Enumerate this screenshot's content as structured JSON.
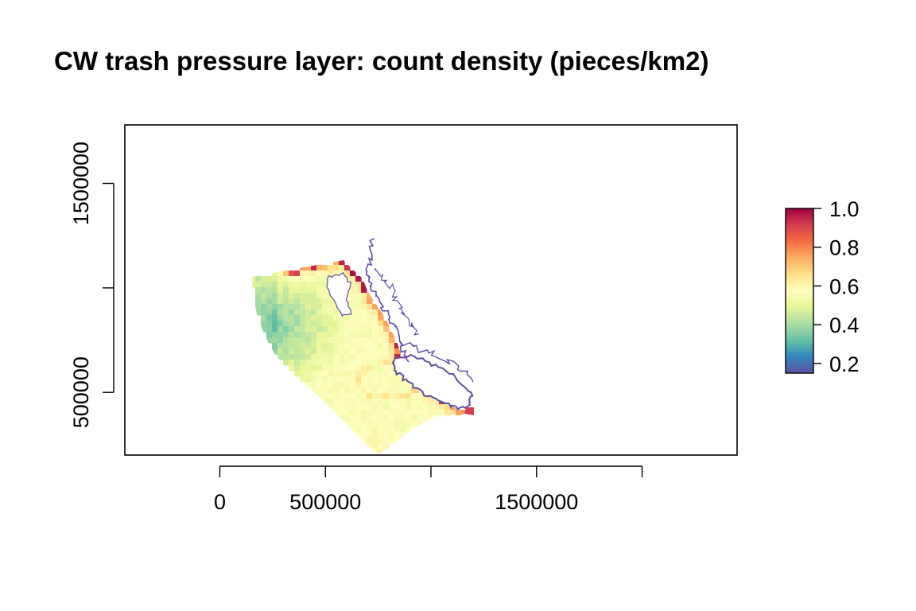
{
  "title": "CW trash pressure layer: count density (pieces/km2)",
  "map": {
    "x_range": [
      -450000,
      2450000
    ],
    "y_range": [
      200000,
      1780000
    ],
    "x_ticks": [
      0,
      500000,
      1000000,
      1500000,
      2000000
    ],
    "x_tick_labels": [
      "0",
      "500000",
      "",
      "1500000",
      ""
    ],
    "y_ticks": [
      500000,
      1000000,
      1500000
    ],
    "y_tick_labels": [
      "500000",
      "",
      "1500000"
    ],
    "coastline_color": "#5E4FA2",
    "raster_extent": {
      "x_range": [
        150000,
        1220000
      ],
      "y_range": [
        215000,
        1230000
      ]
    }
  },
  "legend": {
    "range": [
      0.15,
      1.0
    ],
    "tick_values": [
      0.2,
      0.4,
      0.6,
      0.8,
      1.0
    ],
    "tick_labels": [
      "0.2",
      "0.4",
      "0.6",
      "0.8",
      "1.0"
    ],
    "palette": "Spectral",
    "colors": [
      "#5E4FA2",
      "#3288BD",
      "#66C2A5",
      "#ABDDA4",
      "#E6F598",
      "#FFFFBF",
      "#FEE08B",
      "#FDAE61",
      "#F46D43",
      "#D53E4F",
      "#9E0142"
    ]
  }
}
